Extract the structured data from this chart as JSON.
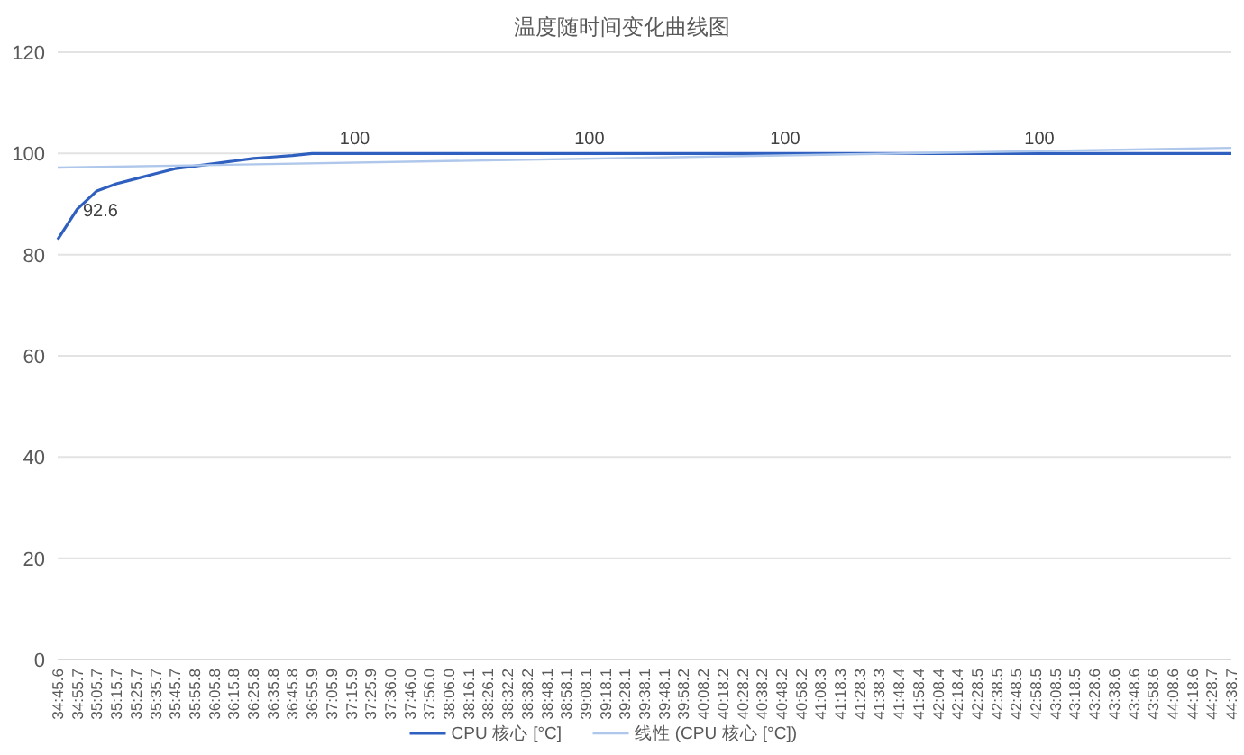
{
  "chart_data": {
    "type": "line",
    "title": "温度随时间变化曲线图",
    "categories": [
      "34:45.6",
      "34:55.7",
      "35:05.7",
      "35:15.7",
      "35:25.7",
      "35:35.7",
      "35:45.7",
      "35:55.8",
      "36:05.8",
      "36:15.8",
      "36:25.8",
      "36:35.8",
      "36:45.8",
      "36:55.9",
      "37:05.9",
      "37:15.9",
      "37:25.9",
      "37:36.0",
      "37:46.0",
      "37:56.0",
      "38:06.0",
      "38:16.1",
      "38:26.1",
      "38:32.2",
      "38:38.2",
      "38:48.1",
      "38:58.1",
      "39:08.1",
      "39:18.1",
      "39:28.1",
      "39:38.1",
      "39:48.1",
      "39:58.2",
      "40:08.2",
      "40:18.2",
      "40:28.2",
      "40:38.2",
      "40:48.2",
      "40:58.2",
      "41:08.3",
      "41:18.3",
      "41:28.3",
      "41:38.3",
      "41:48.4",
      "41:58.4",
      "42:08.4",
      "42:18.4",
      "42:28.5",
      "42:38.5",
      "42:48.5",
      "42:58.5",
      "43:08.5",
      "43:18.5",
      "43:28.6",
      "43:38.6",
      "43:48.6",
      "43:58.6",
      "44:08.6",
      "44:18.6",
      "44:28.7",
      "44:38.7"
    ],
    "series": [
      {
        "name": "CPU 核心 [°C]",
        "color": "#2f5fbf",
        "values": [
          83,
          89,
          92.6,
          94,
          95,
          96,
          97,
          97.5,
          98,
          98.5,
          99,
          99.3,
          99.6,
          100,
          100,
          100,
          100,
          100,
          100,
          100,
          100,
          100,
          100,
          100,
          100,
          100,
          100,
          100,
          100,
          100,
          100,
          100,
          100,
          100,
          100,
          100,
          100,
          100,
          100,
          100,
          100,
          100,
          100,
          100,
          100,
          100,
          100,
          100,
          100,
          100,
          100,
          100,
          100,
          100,
          100,
          100,
          100,
          100,
          100,
          100,
          100
        ],
        "value_labels": [
          null,
          null,
          "92.6",
          null,
          null,
          null,
          null,
          null,
          null,
          null,
          null,
          null,
          null,
          null,
          null,
          "100",
          null,
          null,
          null,
          null,
          null,
          null,
          null,
          null,
          null,
          null,
          null,
          "100",
          null,
          null,
          null,
          null,
          null,
          null,
          null,
          null,
          null,
          "100",
          null,
          null,
          null,
          null,
          null,
          null,
          null,
          null,
          null,
          null,
          null,
          null,
          "100",
          null,
          null,
          null,
          null,
          null,
          null,
          null,
          null,
          null,
          null
        ]
      },
      {
        "name": "线性 (CPU 核心 [°C])",
        "color": "#aec7ea",
        "x": [
          "34:45.6",
          "44:38.7"
        ],
        "values": [
          97.2,
          101.1
        ]
      }
    ],
    "ylim": [
      0,
      120
    ],
    "yticks": [
      0,
      20,
      40,
      60,
      80,
      100,
      120
    ],
    "grid": "y",
    "legend": "bottom",
    "marker": "none",
    "line_style": "solid"
  }
}
